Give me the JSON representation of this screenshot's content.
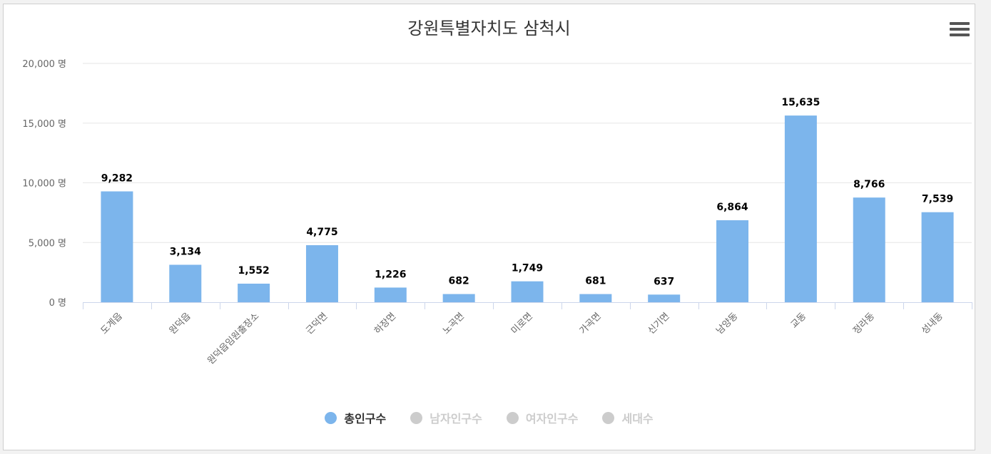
{
  "title": "강원특별자치도 삼척시",
  "menu_icon": "hamburger-menu-icon",
  "colors": {
    "bar": "#7cb5ec",
    "inactive": "#cccccc",
    "grid": "#e6e6e6",
    "axis": "#ccd6eb",
    "text": "#333333",
    "tick_text": "#666666"
  },
  "legend": [
    {
      "label": "총인구수",
      "active": true
    },
    {
      "label": "남자인구수",
      "active": false
    },
    {
      "label": "여자인구수",
      "active": false
    },
    {
      "label": "세대수",
      "active": false
    }
  ],
  "chart_data": {
    "type": "bar",
    "title": "강원특별자치도 삼척시",
    "categories": [
      "도계읍",
      "원덕읍",
      "원덕읍임원출장소",
      "근덕면",
      "하장면",
      "노곡면",
      "미로면",
      "가곡면",
      "신기면",
      "남양동",
      "교동",
      "정라동",
      "성내동"
    ],
    "series": [
      {
        "name": "총인구수",
        "values": [
          9282,
          3134,
          1552,
          4775,
          1226,
          682,
          1749,
          681,
          637,
          6864,
          15635,
          8766,
          7539
        ]
      }
    ],
    "data_labels": [
      "9,282",
      "3,134",
      "1,552",
      "4,775",
      "1,226",
      "682",
      "1,749",
      "681",
      "637",
      "6,864",
      "15,635",
      "8,766",
      "7,539"
    ],
    "y_ticks": [
      0,
      5000,
      10000,
      15000,
      20000
    ],
    "y_tick_labels": [
      "0 명",
      "5,000 명",
      "10,000 명",
      "15,000 명",
      "20,000 명"
    ],
    "ylim": [
      0,
      20000
    ],
    "grid": true,
    "legend_position": "bottom-center"
  }
}
